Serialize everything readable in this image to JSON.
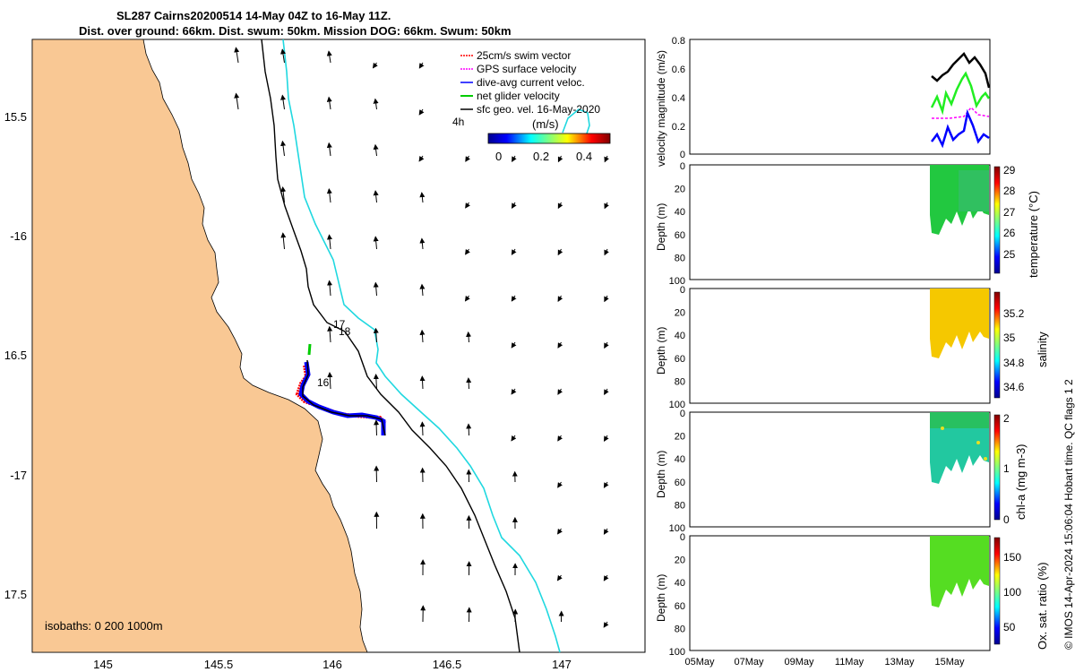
{
  "title": {
    "line1": "SL287 Cairns20200514 14-May 04Z to 16-May 11Z.",
    "line2": "Dist. over ground: 66km. Dist. swum: 50km. Mission DOG: 66km. Swum: 50km"
  },
  "map": {
    "lon_ticks": [
      "145",
      "145.5",
      "146",
      "146.5",
      "147"
    ],
    "lat_ticks": [
      "15.5",
      "-16",
      "16.5",
      "-17",
      "17.5"
    ],
    "legend": [
      {
        "label": "25cm/s swim vector",
        "color": "#ff0000"
      },
      {
        "label": "GPS surface velocity",
        "color": "#ff00ff"
      },
      {
        "label": "dive-avg current veloc.",
        "color": "#0000ff"
      },
      {
        "label": "net glider velocity",
        "color": "#00cc00"
      },
      {
        "label": "sfc geo. vel. 16-May-2020",
        "color": "#000000"
      }
    ],
    "colorbar": {
      "unit": "(m/s)",
      "ticks": [
        "0",
        "0.2",
        "0.4"
      ],
      "time_label": "4h"
    },
    "track_labels": [
      "16",
      "17",
      "18"
    ],
    "isobaths": "isobaths: 0   200  1000m",
    "colors": {
      "land": "#f9c894",
      "isobath_200": "#000000",
      "isobath_1000": "#20d8e0"
    }
  },
  "panels": [
    {
      "ylabel": "velocity magnitude (m/s)",
      "yticks": [
        "0.8",
        "0.6",
        "0.4",
        "0.2",
        "0"
      ]
    },
    {
      "ylabel": "Depth (m)",
      "yticks": [
        "0",
        "20",
        "40",
        "60",
        "80",
        "100"
      ],
      "cbar_label": "temperature (°C)",
      "cbar_ticks": [
        "29",
        "28",
        "27",
        "26",
        "25"
      ]
    },
    {
      "ylabel": "Depth (m)",
      "yticks": [
        "0",
        "20",
        "40",
        "60",
        "80",
        "100"
      ],
      "cbar_label": "salinity",
      "cbar_ticks": [
        "35.2",
        "35",
        "34.8",
        "34.6"
      ]
    },
    {
      "ylabel": "Depth (m)",
      "yticks": [
        "0",
        "20",
        "40",
        "60",
        "80",
        "100"
      ],
      "cbar_label": "chl-a (mg m-3)",
      "cbar_ticks": [
        "2",
        "1",
        "0"
      ]
    },
    {
      "ylabel": "Depth (m)",
      "yticks": [
        "0",
        "20",
        "40",
        "60",
        "80",
        "100"
      ],
      "cbar_label": "Ox. sat. ratio (%)",
      "cbar_ticks": [
        "150",
        "100",
        "50"
      ]
    }
  ],
  "time_axis": [
    "05May",
    "07May",
    "09May",
    "11May",
    "13May",
    "15May"
  ],
  "credit": "© IMOS 14-Apr-2024 15:06:04 Hobart time. QC flags 1  2"
}
